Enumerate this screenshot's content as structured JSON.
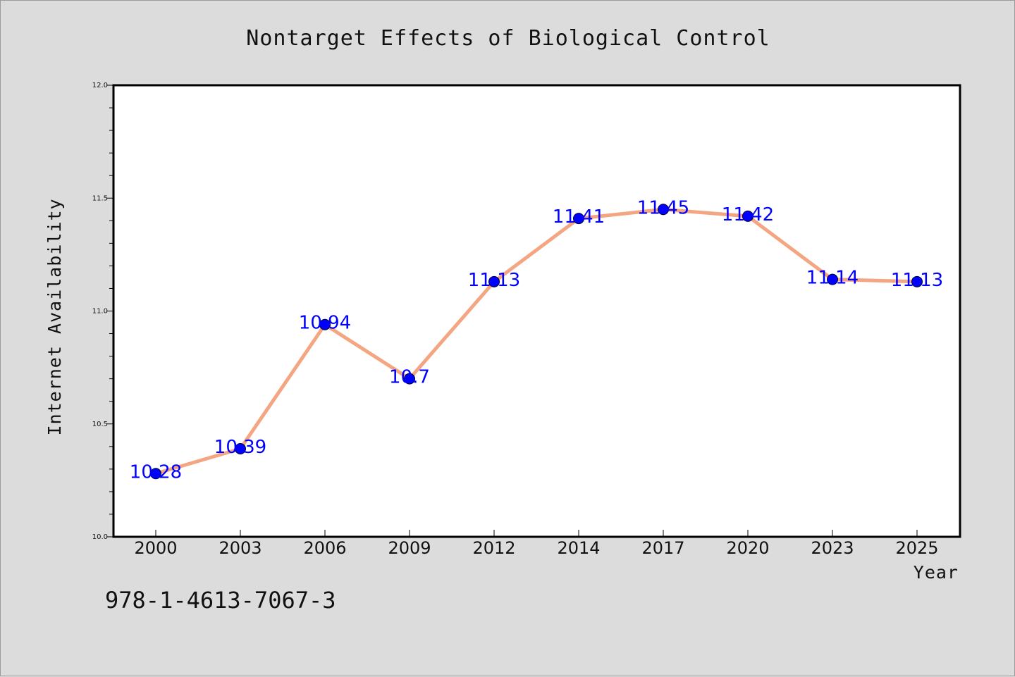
{
  "chart_data": {
    "type": "line",
    "title": "Nontarget Effects of Biological Control",
    "xlabel": "Year",
    "ylabel": "Internet Availability",
    "categories": [
      "2000",
      "2003",
      "2006",
      "2009",
      "2012",
      "2014",
      "2017",
      "2020",
      "2023",
      "2025"
    ],
    "values": [
      10.28,
      10.39,
      10.94,
      10.7,
      11.13,
      11.41,
      11.45,
      11.42,
      11.14,
      11.13
    ],
    "data_labels": [
      "10.28",
      "10.39",
      "10.94",
      "10.7",
      "11.13",
      "11.41",
      "11.45",
      "11.42",
      "11.14",
      "11.13"
    ],
    "ylim": [
      10.0,
      12.0
    ],
    "yticks": [
      "10.0",
      "10.5",
      "11.0",
      "11.5",
      "12.0"
    ],
    "grid": false,
    "line_color": "#f4a582",
    "marker_color": "#0000ff",
    "label_color": "#0000ff"
  },
  "footer": {
    "isbn": "978-1-4613-7067-3"
  }
}
